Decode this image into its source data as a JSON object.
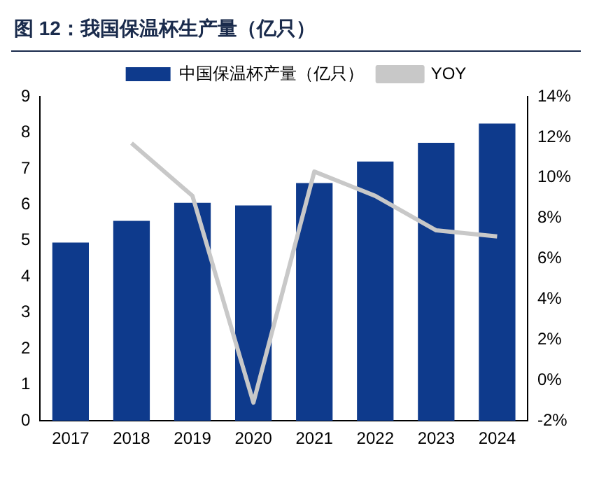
{
  "chart_data": {
    "type": "bar",
    "title": "图 12：我国保温杯生产量（亿只）",
    "categories": [
      "2017",
      "2018",
      "2019",
      "2020",
      "2021",
      "2022",
      "2023",
      "2024"
    ],
    "series": [
      {
        "name": "中国保温杯产量（亿只）",
        "color": "#0e3a8c",
        "values": [
          4.95,
          5.55,
          6.05,
          5.98,
          6.6,
          7.2,
          7.72,
          8.25
        ]
      },
      {
        "name": "YOY",
        "type": "line",
        "axis": "y2",
        "color": "#c8c8c8",
        "values": [
          null,
          11.7,
          9.1,
          -1.1,
          10.3,
          9.1,
          7.4,
          7.1
        ]
      }
    ],
    "ylim": [
      0,
      9
    ],
    "yticks": [
      0,
      1,
      2,
      3,
      4,
      5,
      6,
      7,
      8,
      9
    ],
    "y2lim": [
      -2,
      14
    ],
    "y2ticks": [
      {
        "value": -2,
        "label": "-2%"
      },
      {
        "value": 0,
        "label": "0%"
      },
      {
        "value": 2,
        "label": "2%"
      },
      {
        "value": 4,
        "label": "4%"
      },
      {
        "value": 6,
        "label": "6%"
      },
      {
        "value": 8,
        "label": "8%"
      },
      {
        "value": 10,
        "label": "10%"
      },
      {
        "value": 12,
        "label": "12%"
      },
      {
        "value": 14,
        "label": "14%"
      }
    ],
    "grid": false,
    "legend": "top",
    "marker": "none",
    "line_style": "solid"
  }
}
